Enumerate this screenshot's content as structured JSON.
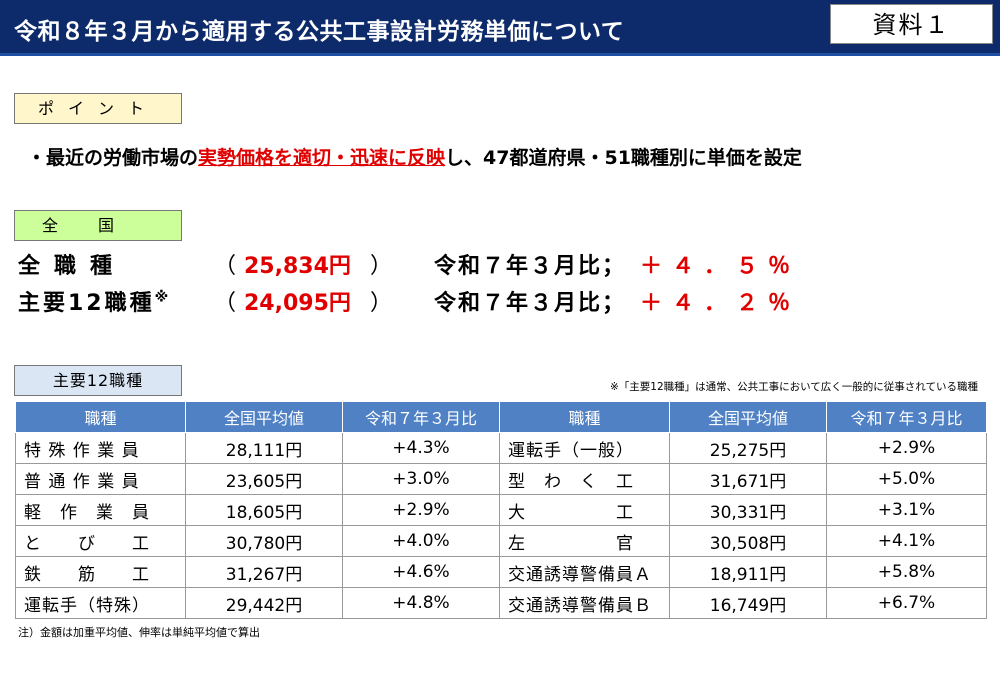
{
  "header": {
    "title": "令和８年３月から適用する公共工事設計労務単価について",
    "doc_label": "資料１"
  },
  "point": {
    "tag": "ポイント",
    "prefix": "・最近の労働市場の",
    "highlight": "実勢価格を適切・迅速に反映",
    "suffix": "し、47都道府県・51職種別に単価を設定"
  },
  "national": {
    "tag": "全国",
    "rows": [
      {
        "label": "全職種",
        "mark": "",
        "value": "25,834円",
        "compare": "令和７年３月比；",
        "rate": "＋４．５％"
      },
      {
        "label": "主要12職種",
        "mark": "※",
        "value": "24,095円",
        "compare": "令和７年３月比；",
        "rate": "＋４．２％"
      }
    ]
  },
  "main12": {
    "tag": "主要12職種",
    "note": "※「主要12職種」は通常、公共工事において広く一般的に従事されている職種",
    "headers": [
      "職種",
      "全国平均値",
      "令和７年３月比",
      "職種",
      "全国平均値",
      "令和７年３月比"
    ],
    "rows": [
      [
        "特 殊 作 業 員",
        "28,111円",
        "+4.3%",
        "運転手（一般）",
        "25,275円",
        "+2.9%"
      ],
      [
        "普 通 作 業 員",
        "23,605円",
        "+3.0%",
        "型　わ　く　工",
        "31,671円",
        "+5.0%"
      ],
      [
        "軽　作　業　員",
        "18,605円",
        "+2.9%",
        "大　　　　　工",
        "30,331円",
        "+3.1%"
      ],
      [
        "と　　び　　工",
        "30,780円",
        "+4.0%",
        "左　　　　　官",
        "30,508円",
        "+4.1%"
      ],
      [
        "鉄　　筋　　工",
        "31,267円",
        "+4.6%",
        "交通誘導警備員Ａ",
        "18,911円",
        "+5.8%"
      ],
      [
        "運転手（特殊）",
        "29,442円",
        "+4.8%",
        "交通誘導警備員Ｂ",
        "16,749円",
        "+6.7%"
      ]
    ],
    "footnote": "注）金額は加重平均値、伸率は単純平均値で算出"
  }
}
